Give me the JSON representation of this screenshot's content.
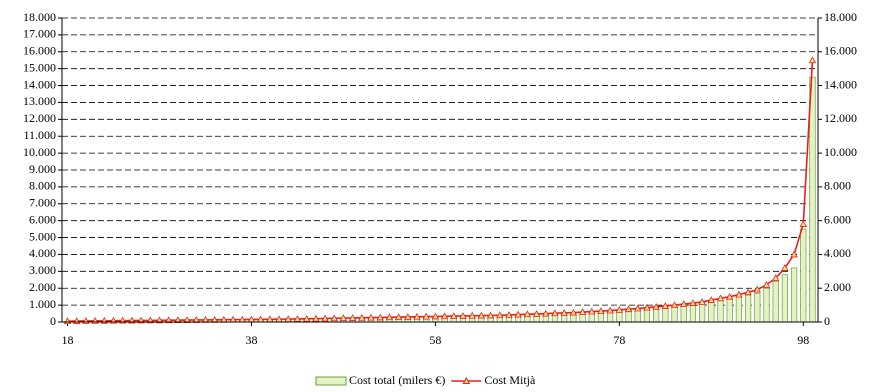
{
  "chart_data": {
    "type": "bar-line",
    "x": [
      18,
      19,
      20,
      21,
      22,
      23,
      24,
      25,
      26,
      27,
      28,
      29,
      30,
      31,
      32,
      33,
      34,
      35,
      36,
      37,
      38,
      39,
      40,
      41,
      42,
      43,
      44,
      45,
      46,
      47,
      48,
      49,
      50,
      51,
      52,
      53,
      54,
      55,
      56,
      57,
      58,
      59,
      60,
      61,
      62,
      63,
      64,
      65,
      66,
      67,
      68,
      69,
      70,
      71,
      72,
      73,
      74,
      75,
      76,
      77,
      78,
      79,
      80,
      81,
      82,
      83,
      84,
      85,
      86,
      87,
      88,
      89,
      90,
      91,
      92,
      93,
      94,
      95,
      96,
      97,
      98,
      99
    ],
    "xlim": [
      17.4,
      99.6
    ],
    "xticks": [
      18,
      38,
      58,
      78,
      98
    ],
    "ylim": [
      0,
      18000
    ],
    "yticks": [
      0,
      {
        "value": 1000,
        "label": "1.000"
      },
      {
        "value": 2000,
        "label": "2.000"
      },
      {
        "value": 3000,
        "label": "3.000"
      },
      {
        "value": 4000,
        "label": "4.000"
      },
      {
        "value": 5000,
        "label": "5.000"
      },
      {
        "value": 6000,
        "label": "6.000"
      },
      {
        "value": 7000,
        "label": "7.000"
      },
      {
        "value": 8000,
        "label": "8.000"
      },
      {
        "value": 9000,
        "label": "9.000"
      },
      {
        "value": 10000,
        "label": "10.000"
      },
      {
        "value": 11000,
        "label": "11.000"
      },
      {
        "value": 12000,
        "label": "12.000"
      },
      {
        "value": 13000,
        "label": "13.000"
      },
      {
        "value": 14000,
        "label": "14.000"
      },
      {
        "value": 15000,
        "label": "15.000"
      },
      {
        "value": 16000,
        "label": "16.000"
      },
      {
        "value": 17000,
        "label": "17.000"
      },
      {
        "value": 18000,
        "label": "18.000"
      }
    ],
    "y2lim": [
      0,
      18000
    ],
    "y2ticks": [
      0,
      {
        "value": 2000,
        "label": "2.000"
      },
      {
        "value": 4000,
        "label": "4.000"
      },
      {
        "value": 6000,
        "label": "6.000"
      },
      {
        "value": 8000,
        "label": "8.000"
      },
      {
        "value": 10000,
        "label": "10.000"
      },
      {
        "value": 12000,
        "label": "12.000"
      },
      {
        "value": 14000,
        "label": "14.000"
      },
      {
        "value": 16000,
        "label": "16.000"
      },
      {
        "value": 18000,
        "label": "18.000"
      }
    ],
    "grid": true,
    "legend": "bottom",
    "series": [
      {
        "name": "Cost total (milers €)",
        "type": "bar",
        "color": "#e4f3c4",
        "edge": "#6f9d3c",
        "values": [
          40,
          45,
          50,
          55,
          60,
          65,
          70,
          75,
          80,
          85,
          90,
          95,
          100,
          105,
          110,
          115,
          120,
          125,
          130,
          135,
          140,
          145,
          150,
          155,
          160,
          165,
          175,
          185,
          195,
          205,
          215,
          225,
          235,
          245,
          255,
          265,
          275,
          285,
          295,
          305,
          315,
          325,
          335,
          345,
          355,
          365,
          375,
          385,
          400,
          420,
          440,
          460,
          480,
          500,
          520,
          540,
          570,
          600,
          630,
          660,
          700,
          740,
          780,
          830,
          880,
          930,
          980,
          1040,
          1100,
          1170,
          1240,
          1320,
          1400,
          1490,
          1590,
          1700,
          2000,
          2400,
          2800,
          3200,
          5500,
          14500
        ]
      },
      {
        "name": "Cost Mitjà",
        "type": "line",
        "axis": "y2",
        "color": "#e8201a",
        "values": [
          50,
          55,
          60,
          65,
          70,
          75,
          80,
          85,
          90,
          95,
          100,
          105,
          110,
          115,
          120,
          125,
          130,
          135,
          140,
          145,
          150,
          155,
          160,
          165,
          170,
          180,
          190,
          200,
          210,
          220,
          230,
          240,
          250,
          260,
          270,
          280,
          290,
          300,
          310,
          320,
          330,
          340,
          350,
          360,
          370,
          380,
          390,
          400,
          420,
          440,
          460,
          480,
          500,
          520,
          540,
          560,
          590,
          620,
          650,
          680,
          720,
          760,
          800,
          850,
          900,
          950,
          1000,
          1060,
          1120,
          1190,
          1300,
          1400,
          1500,
          1620,
          1760,
          1920,
          2200,
          2600,
          3200,
          4000,
          5800,
          15500
        ]
      }
    ]
  }
}
